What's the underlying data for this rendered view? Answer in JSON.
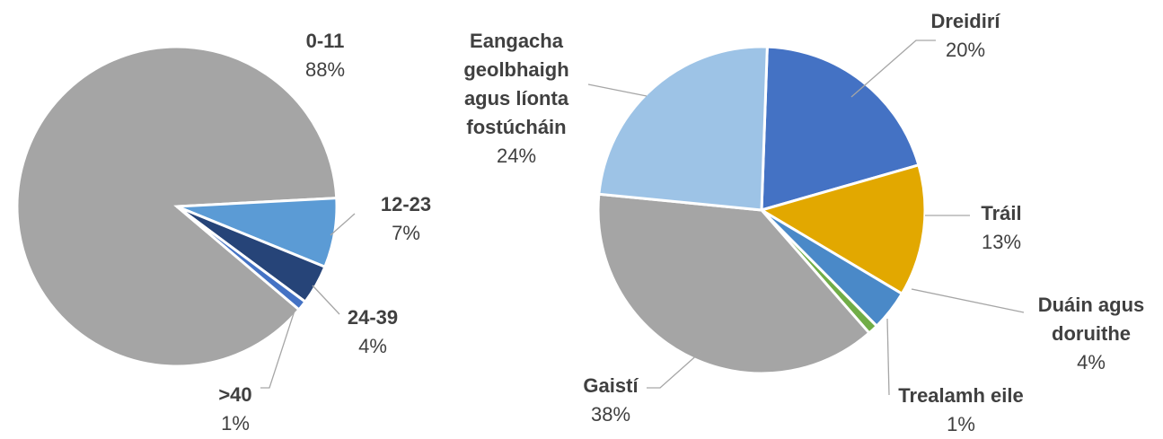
{
  "chart_data": [
    {
      "type": "pie",
      "categories": [
        "0-11",
        "12-23",
        "24-39",
        ">40"
      ],
      "values": [
        88,
        7,
        4,
        1
      ],
      "value_labels": [
        "88%",
        "7%",
        "4%",
        "1%"
      ],
      "colors": [
        "#a5a5a5",
        "#5b9bd5",
        "#264478",
        "#4472c4"
      ]
    },
    {
      "type": "pie",
      "categories": [
        "Dreidirí",
        "Tráil",
        "Duáin agus doruithe",
        "Trealamh eile",
        "Gaistí",
        "Eangacha geolbhaigh agus líonta fostúcháin"
      ],
      "values": [
        20,
        13,
        4,
        1,
        38,
        24
      ],
      "value_labels": [
        "20%",
        "13%",
        "4%",
        "1%",
        "38%",
        "24%"
      ],
      "colors": [
        "#4472c4",
        "#e2a800",
        "#4a89c8",
        "#70ad47",
        "#a5a5a5",
        "#9dc3e6"
      ]
    }
  ]
}
